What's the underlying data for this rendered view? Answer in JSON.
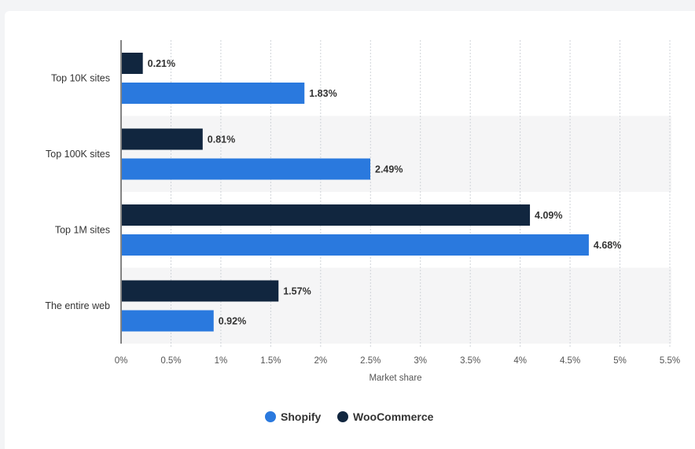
{
  "chart_data": {
    "type": "bar",
    "orientation": "horizontal",
    "categories": [
      "Top 10K sites",
      "Top 100K sites",
      "Top 1M sites",
      "The entire web"
    ],
    "series": [
      {
        "name": "WooCommerce",
        "color": "#11263f",
        "values": [
          0.21,
          0.81,
          4.09,
          1.57
        ],
        "labels": [
          "0.21%",
          "0.81%",
          "4.09%",
          "1.57%"
        ]
      },
      {
        "name": "Shopify",
        "color": "#2a79de",
        "values": [
          1.83,
          2.49,
          4.68,
          0.92
        ],
        "labels": [
          "1.83%",
          "2.49%",
          "4.68%",
          "0.92%"
        ]
      }
    ],
    "xlabel": "Market share",
    "xlim": [
      0,
      5.5
    ],
    "xticks": [
      0,
      0.5,
      1,
      1.5,
      2,
      2.5,
      3,
      3.5,
      4,
      4.5,
      5,
      5.5
    ],
    "xtick_labels": [
      "0%",
      "0.5%",
      "1%",
      "1.5%",
      "2%",
      "2.5%",
      "3%",
      "3.5%",
      "4%",
      "4.5%",
      "5%",
      "5.5%"
    ],
    "grid": "vertical-dotted",
    "alternating_row_bands": true,
    "legend": {
      "placement": "bottom-center",
      "items": [
        {
          "name": "Shopify",
          "color": "#2a79de"
        },
        {
          "name": "WooCommerce",
          "color": "#11263f"
        }
      ]
    }
  }
}
